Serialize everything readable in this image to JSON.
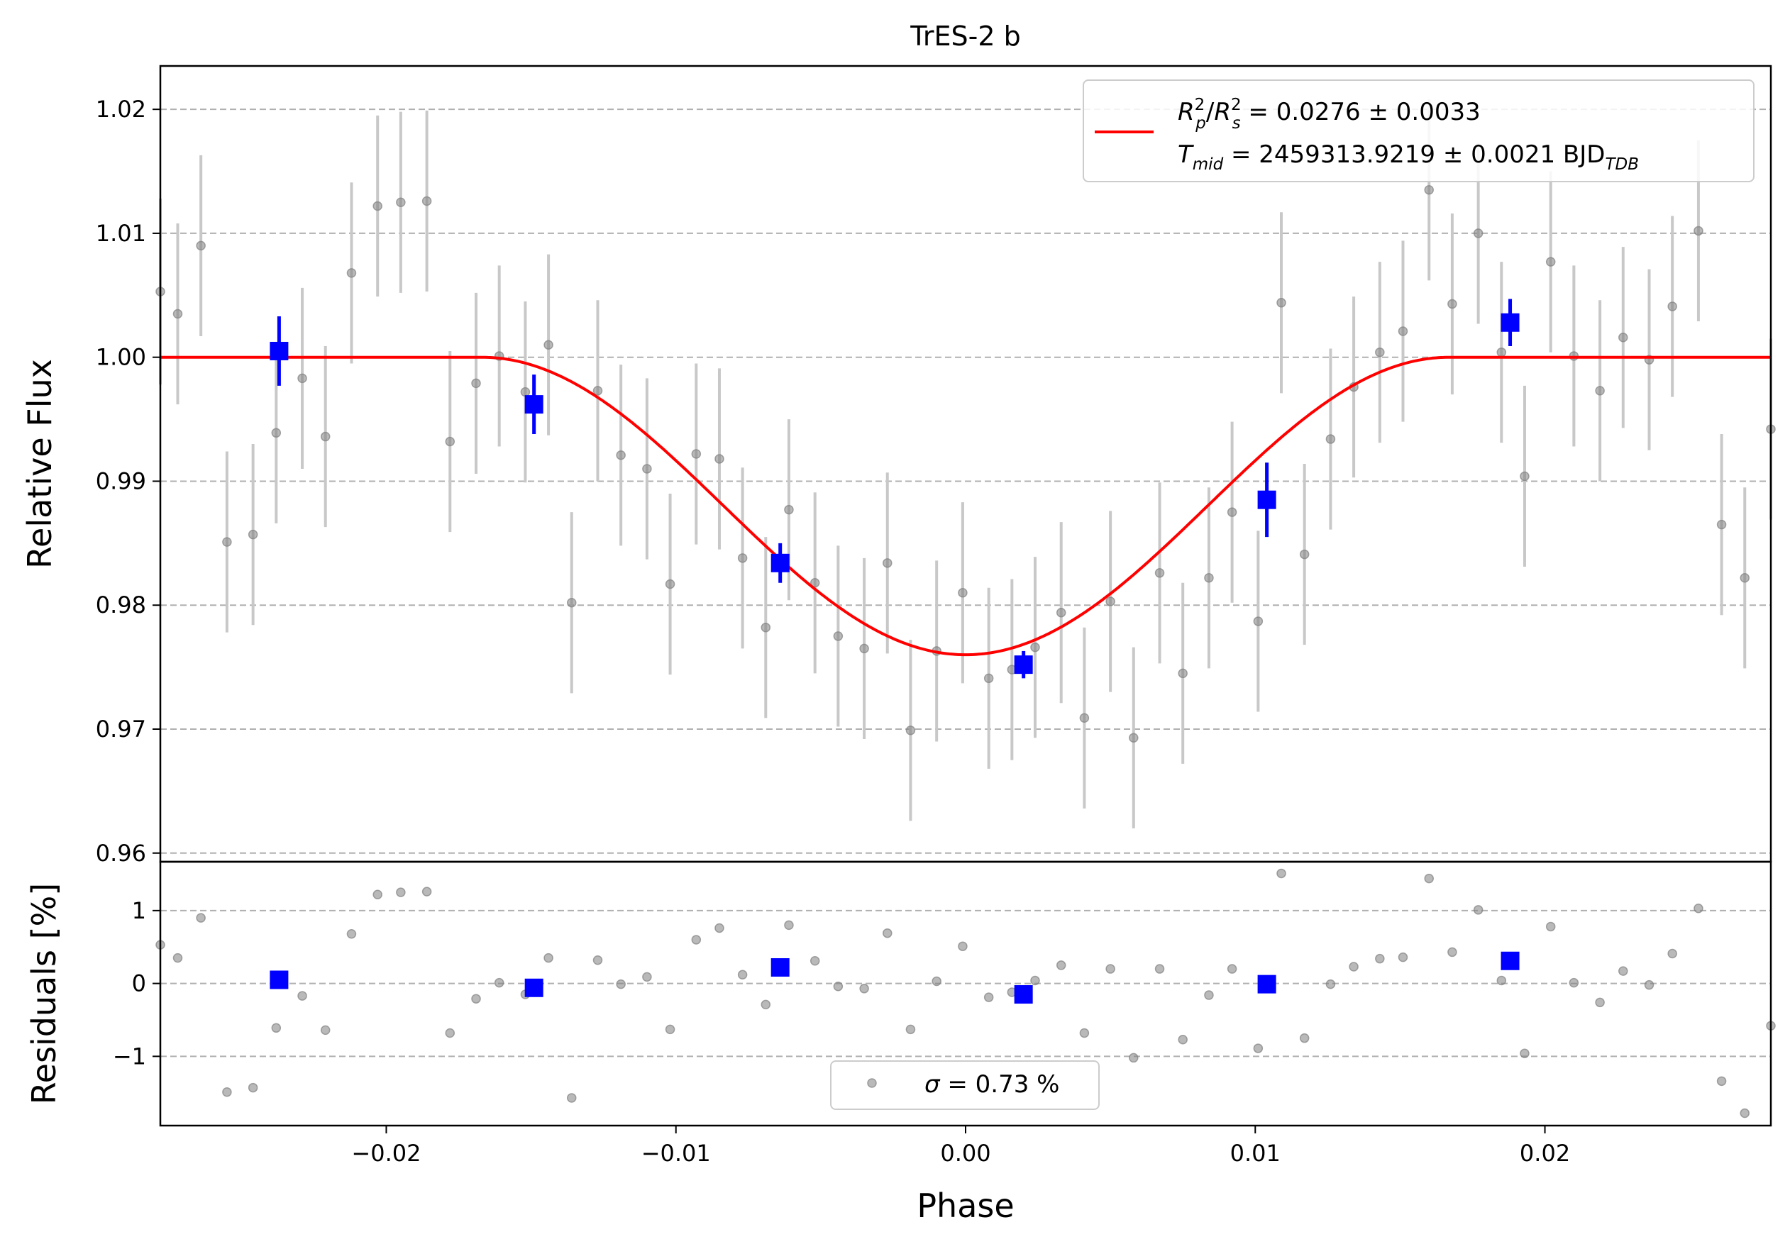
{
  "chart_data": [
    {
      "type": "scatter",
      "title": "TrES-2 b",
      "xlabel": "",
      "ylabel": "Relative Flux",
      "xlim": [
        -0.0278,
        0.0278
      ],
      "ylim": [
        0.9593,
        1.0235
      ],
      "grid": "horizontal-dashed",
      "yticks": [
        0.96,
        0.97,
        0.98,
        0.99,
        1.0,
        1.01,
        1.02
      ],
      "ytick_labels": [
        "0.96",
        "0.97",
        "0.98",
        "0.99",
        "1.00",
        "1.01",
        "1.02"
      ],
      "legend_position": "upper-right",
      "legend": {
        "line1": {
          "R": "R",
          "p_sup": "2",
          "p_sub": "p",
          "slash": "/",
          "Rs": "R",
          "s_sup": "2",
          "s_sub": "s",
          "value": " = 0.0276 ± 0.0033"
        },
        "line2": {
          "T": "T",
          "T_sub": "mid",
          "value": " = 2459313.9219 ± 0.0021 BJD",
          "unit_sub": "TDB"
        }
      },
      "model": {
        "name": "fit",
        "color": "#ff0000",
        "depth": 0.024,
        "t_contact_outer": 0.0167,
        "t_contact_inner": 0.0095,
        "baseline": 1.0
      },
      "series": [
        {
          "kind": "data",
          "color": "#808080",
          "points": [
            [
              -0.0278,
              1.0053,
              0.0075
            ],
            [
              -0.0272,
              1.0035,
              0.0073
            ],
            [
              -0.0264,
              1.009,
              0.0073
            ],
            [
              -0.0255,
              0.9851,
              0.0073
            ],
            [
              -0.0246,
              0.9857,
              0.0073
            ],
            [
              -0.0238,
              0.9939,
              0.0073
            ],
            [
              -0.0229,
              0.9983,
              0.0073
            ],
            [
              -0.0221,
              0.9936,
              0.0073
            ],
            [
              -0.0212,
              1.0068,
              0.0073
            ],
            [
              -0.0203,
              1.0122,
              0.0073
            ],
            [
              -0.0195,
              1.0125,
              0.0073
            ],
            [
              -0.0186,
              1.0126,
              0.0073
            ],
            [
              -0.0178,
              0.9932,
              0.0073
            ],
            [
              -0.0169,
              0.9979,
              0.0073
            ],
            [
              -0.0161,
              1.0001,
              0.0073
            ],
            [
              -0.0152,
              0.9972,
              0.0073
            ],
            [
              -0.0144,
              1.001,
              0.0073
            ],
            [
              -0.0136,
              0.9802,
              0.0073
            ],
            [
              -0.0127,
              0.9973,
              0.0073
            ],
            [
              -0.0119,
              0.9921,
              0.0073
            ],
            [
              -0.011,
              0.991,
              0.0073
            ],
            [
              -0.0102,
              0.9817,
              0.0073
            ],
            [
              -0.0093,
              0.9922,
              0.0073
            ],
            [
              -0.0085,
              0.9918,
              0.0073
            ],
            [
              -0.0077,
              0.9838,
              0.0073
            ],
            [
              -0.0069,
              0.9782,
              0.0073
            ],
            [
              -0.0061,
              0.9877,
              0.0073
            ],
            [
              -0.0052,
              0.9818,
              0.0073
            ],
            [
              -0.0044,
              0.9775,
              0.0073
            ],
            [
              -0.0035,
              0.9765,
              0.0073
            ],
            [
              -0.0027,
              0.9834,
              0.0073
            ],
            [
              -0.0019,
              0.9699,
              0.0073
            ],
            [
              -0.001,
              0.9763,
              0.0073
            ],
            [
              -0.0001,
              0.981,
              0.0073
            ],
            [
              0.0008,
              0.9741,
              0.0073
            ],
            [
              0.0016,
              0.9748,
              0.0073
            ],
            [
              0.0024,
              0.9766,
              0.0073
            ],
            [
              0.0033,
              0.9794,
              0.0073
            ],
            [
              0.0041,
              0.9709,
              0.0073
            ],
            [
              0.005,
              0.9803,
              0.0073
            ],
            [
              0.0058,
              0.9693,
              0.0073
            ],
            [
              0.0067,
              0.9826,
              0.0073
            ],
            [
              0.0075,
              0.9745,
              0.0073
            ],
            [
              0.0084,
              0.9822,
              0.0073
            ],
            [
              0.0092,
              0.9875,
              0.0073
            ],
            [
              0.0101,
              0.9787,
              0.0073
            ],
            [
              0.0109,
              1.0044,
              0.0073
            ],
            [
              0.0117,
              0.9841,
              0.0073
            ],
            [
              0.0126,
              0.9934,
              0.0073
            ],
            [
              0.0134,
              0.9976,
              0.0073
            ],
            [
              0.0143,
              1.0004,
              0.0073
            ],
            [
              0.0151,
              1.0021,
              0.0073
            ],
            [
              0.016,
              1.0135,
              0.0073
            ],
            [
              0.0168,
              1.0043,
              0.0073
            ],
            [
              0.0177,
              1.01,
              0.0073
            ],
            [
              0.0185,
              1.0004,
              0.0073
            ],
            [
              0.0193,
              0.9904,
              0.0073
            ],
            [
              0.0202,
              1.0077,
              0.0073
            ],
            [
              0.021,
              1.0001,
              0.0073
            ],
            [
              0.0219,
              0.9973,
              0.0073
            ],
            [
              0.0227,
              1.0016,
              0.0073
            ],
            [
              0.0236,
              0.9998,
              0.0073
            ],
            [
              0.0244,
              1.0041,
              0.0073
            ],
            [
              0.0253,
              1.0102,
              0.0073
            ],
            [
              0.0261,
              0.9865,
              0.0073
            ],
            [
              0.0269,
              0.9822,
              0.0073
            ],
            [
              0.0278,
              0.9942,
              0.0073
            ]
          ]
        },
        {
          "kind": "binned",
          "color": "#0000ff",
          "points": [
            [
              -0.0237,
              1.0005,
              0.0028
            ],
            [
              -0.0149,
              0.9962,
              0.0024
            ],
            [
              -0.0064,
              0.9834,
              0.0016
            ],
            [
              0.002,
              0.9752,
              0.0011
            ],
            [
              0.0104,
              0.9885,
              0.003
            ],
            [
              0.0188,
              1.0028,
              0.0019
            ]
          ]
        }
      ]
    },
    {
      "type": "scatter",
      "xlabel": "Phase",
      "ylabel": "Residuals [%]",
      "xlim": [
        -0.0278,
        0.0278
      ],
      "ylim": [
        -1.95,
        1.67
      ],
      "grid": "horizontal-dashed",
      "xticks": [
        -0.02,
        -0.01,
        0.0,
        0.01,
        0.02
      ],
      "xtick_labels": [
        "−0.02",
        "−0.01",
        "0.00",
        "0.01",
        "0.02"
      ],
      "yticks": [
        -1,
        0,
        1
      ],
      "ytick_labels": [
        "−1",
        "0",
        "1"
      ],
      "legend_position": "lower-center",
      "legend": {
        "sigma": "σ",
        "value": " = 0.73 %"
      },
      "series": [
        {
          "kind": "data",
          "color": "#808080",
          "points": [
            [
              -0.0278,
              0.53
            ],
            [
              -0.0272,
              0.35
            ],
            [
              -0.0264,
              0.9
            ],
            [
              -0.0255,
              -1.49
            ],
            [
              -0.0246,
              -1.43
            ],
            [
              -0.0238,
              -0.61
            ],
            [
              -0.0229,
              -0.17
            ],
            [
              -0.0221,
              -0.64
            ],
            [
              -0.0212,
              0.68
            ],
            [
              -0.0203,
              1.22
            ],
            [
              -0.0195,
              1.25
            ],
            [
              -0.0186,
              1.26
            ],
            [
              -0.0178,
              -0.68
            ],
            [
              -0.0169,
              -0.21
            ],
            [
              -0.0161,
              0.01
            ],
            [
              -0.0152,
              -0.15
            ],
            [
              -0.0144,
              0.35
            ],
            [
              -0.0136,
              -1.57
            ],
            [
              -0.0127,
              0.32
            ],
            [
              -0.0119,
              -0.01
            ],
            [
              -0.011,
              0.09
            ],
            [
              -0.0102,
              -0.63
            ],
            [
              -0.0093,
              0.6
            ],
            [
              -0.0085,
              0.76
            ],
            [
              -0.0077,
              0.12
            ],
            [
              -0.0069,
              -0.29
            ],
            [
              -0.0061,
              0.8
            ],
            [
              -0.0052,
              0.31
            ],
            [
              -0.0044,
              -0.04
            ],
            [
              -0.0035,
              -0.07
            ],
            [
              -0.0027,
              0.69
            ],
            [
              -0.0019,
              -0.63
            ],
            [
              -0.001,
              0.03
            ],
            [
              -0.0001,
              0.51
            ],
            [
              0.0008,
              -0.19
            ],
            [
              0.0016,
              -0.12
            ],
            [
              0.0024,
              0.04
            ],
            [
              0.0033,
              0.25
            ],
            [
              0.0041,
              -0.68
            ],
            [
              0.005,
              0.2
            ],
            [
              0.0058,
              -1.02
            ],
            [
              0.0067,
              0.2
            ],
            [
              0.0075,
              -0.77
            ],
            [
              0.0084,
              -0.16
            ],
            [
              0.0092,
              0.2
            ],
            [
              0.0101,
              -0.89
            ],
            [
              0.0109,
              1.51
            ],
            [
              0.0117,
              -0.75
            ],
            [
              0.0126,
              -0.01
            ],
            [
              0.0134,
              0.23
            ],
            [
              0.0143,
              0.34
            ],
            [
              0.0151,
              0.36
            ],
            [
              0.016,
              1.44
            ],
            [
              0.0168,
              0.43
            ],
            [
              0.0177,
              1.01
            ],
            [
              0.0185,
              0.04
            ],
            [
              0.0193,
              -0.96
            ],
            [
              0.0202,
              0.78
            ],
            [
              0.021,
              0.01
            ],
            [
              0.0219,
              -0.26
            ],
            [
              0.0227,
              0.17
            ],
            [
              0.0236,
              -0.02
            ],
            [
              0.0244,
              0.41
            ],
            [
              0.0253,
              1.03
            ],
            [
              0.0261,
              -1.34
            ],
            [
              0.0269,
              -1.78
            ],
            [
              0.0278,
              -0.58
            ]
          ]
        },
        {
          "kind": "binned",
          "color": "#0000ff",
          "points": [
            [
              -0.0237,
              0.05
            ],
            [
              -0.0149,
              -0.06
            ],
            [
              -0.0064,
              0.22
            ],
            [
              0.002,
              -0.15
            ],
            [
              0.0104,
              -0.01
            ],
            [
              0.0188,
              0.31
            ]
          ]
        }
      ]
    }
  ]
}
